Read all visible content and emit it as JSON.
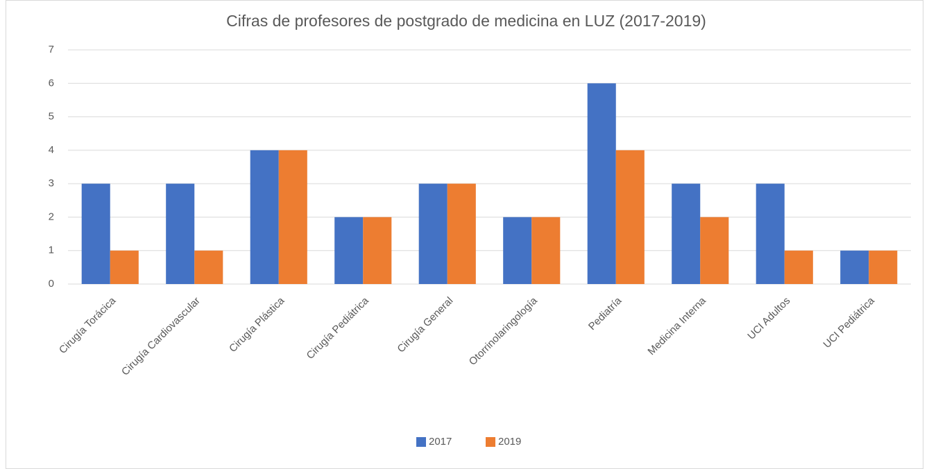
{
  "chart_data": {
    "type": "bar",
    "title": "Cifras de profesores de postgrado de medicina en LUZ (2017-2019)",
    "categories": [
      "Cirugía Torácica",
      "Cirugía Cardiovascular",
      "Cirugía Plástica",
      "Cirugía Pediátrica",
      "Cirugía General",
      "Otorrinolaringología",
      "Pediatría",
      "Medicina Interna",
      "UCI Adultos",
      "UCI Pediátrica"
    ],
    "series": [
      {
        "name": "2017",
        "color": "#4472c4",
        "values": [
          3,
          3,
          4,
          2,
          3,
          2,
          6,
          3,
          3,
          1
        ]
      },
      {
        "name": "2019",
        "color": "#ed7d31",
        "values": [
          1,
          1,
          4,
          2,
          3,
          2,
          4,
          2,
          1,
          1
        ]
      }
    ],
    "ylim": [
      0,
      7
    ],
    "yticks": [
      0,
      1,
      2,
      3,
      4,
      5,
      6,
      7
    ],
    "grid": true,
    "legend": "bottom"
  }
}
